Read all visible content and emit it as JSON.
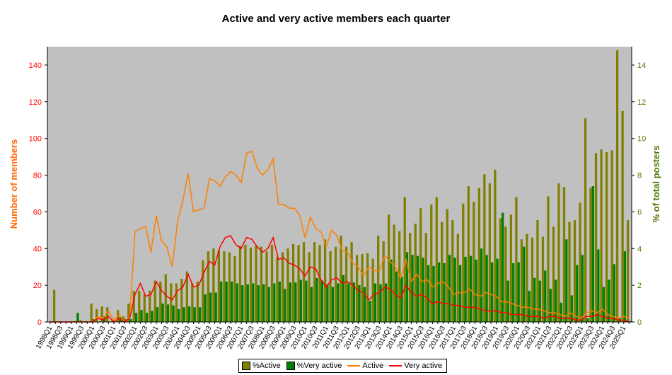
{
  "chart_data": {
    "type": "bar",
    "title": "Active and very active members each quarter",
    "ylabel": "Number of members",
    "y2label": "% of total posters",
    "ylim": [
      0,
      150
    ],
    "y2lim": [
      0,
      15
    ],
    "yticks": [
      "0",
      "20",
      "40",
      "60",
      "80",
      "100",
      "120",
      "140"
    ],
    "y2ticks": [
      "0",
      "2",
      "4",
      "6",
      "8",
      "10",
      "12",
      "14"
    ],
    "x_label_every": 2,
    "categories": [
      "1998Q1",
      "1998Q2",
      "1998Q3",
      "1998Q4",
      "1999Q1",
      "1999Q2",
      "1999Q3",
      "1999Q4",
      "2000Q1",
      "2000Q2",
      "2000Q3",
      "2000Q4",
      "2001Q1",
      "2001Q2",
      "2001Q3",
      "2001Q4",
      "2002Q1",
      "2002Q2",
      "2002Q3",
      "2002Q4",
      "2003Q1",
      "2003Q2",
      "2003Q3",
      "2003Q4",
      "2004Q1",
      "2004Q2",
      "2004Q3",
      "2004Q4",
      "2005Q1",
      "2005Q2",
      "2005Q3",
      "2005Q4",
      "2006Q1",
      "2006Q2",
      "2006Q3",
      "2006Q4",
      "2007Q1",
      "2007Q2",
      "2007Q3",
      "2007Q4",
      "2008Q1",
      "2008Q2",
      "2008Q3",
      "2008Q4",
      "2009Q1",
      "2009Q2",
      "2009Q3",
      "2009Q4",
      "2010Q1",
      "2010Q2",
      "2010Q3",
      "2010Q4",
      "2011Q1",
      "2011Q2",
      "2011Q3",
      "2011Q4",
      "2012Q1",
      "2012Q2",
      "2012Q3",
      "2012Q4",
      "2013Q1",
      "2013Q2",
      "2013Q3",
      "2013Q4",
      "2014Q1",
      "2014Q2",
      "2014Q3",
      "2014Q4",
      "2015Q1",
      "2015Q2",
      "2015Q3",
      "2015Q4",
      "2016Q1",
      "2016Q2",
      "2016Q3",
      "2016Q4",
      "2017Q1",
      "2017Q2",
      "2017Q3",
      "2017Q4",
      "2018Q1",
      "2018Q2",
      "2018Q3",
      "2018Q4",
      "2019Q1",
      "2019Q2",
      "2019Q3",
      "2019Q4",
      "2020Q1",
      "2020Q2",
      "2020Q3",
      "2020Q4",
      "2021Q1",
      "2021Q2",
      "2021Q3",
      "2021Q4",
      "2022Q1",
      "2022Q2",
      "2022Q3",
      "2022Q4",
      "2023Q1",
      "2023Q2",
      "2023Q3",
      "2023Q4",
      "2024Q1",
      "2024Q2",
      "2024Q3",
      "2024Q4",
      "2025Q1",
      "2025Q2"
    ],
    "series": [
      {
        "name": "%Active",
        "type": "bar",
        "axis": "right",
        "color": "#808000",
        "values": [
          0,
          1.75,
          0,
          0,
          0,
          0.05,
          0.1,
          0.05,
          1.0,
          0.7,
          0.85,
          0.8,
          0.1,
          0.65,
          0.3,
          1.0,
          1.7,
          1.7,
          1.5,
          1.7,
          2.25,
          2.2,
          2.6,
          2.1,
          2.1,
          2.35,
          2.75,
          2.1,
          2.2,
          3.35,
          3.85,
          4.0,
          3.9,
          3.85,
          3.8,
          3.6,
          4.15,
          4.2,
          4.05,
          4.15,
          4.1,
          3.85,
          4.2,
          3.55,
          3.8,
          4.0,
          4.25,
          4.2,
          4.35,
          3.8,
          4.35,
          4.2,
          4.5,
          3.85,
          4.1,
          4.7,
          4.1,
          4.35,
          3.65,
          3.7,
          3.75,
          3.45,
          4.7,
          4.4,
          5.85,
          5.3,
          4.95,
          6.8,
          4.85,
          5.35,
          6.2,
          4.85,
          6.4,
          6.8,
          5.45,
          6.15,
          5.55,
          4.8,
          6.45,
          7.4,
          6.55,
          7.3,
          8.05,
          7.55,
          8.3,
          5.65,
          5.2,
          5.85,
          6.8,
          4.5,
          4.8,
          4.6,
          5.55,
          4.65,
          6.85,
          5.2,
          7.55,
          7.35,
          5.45,
          5.55,
          6.5,
          11.1,
          7.3,
          9.2,
          9.4,
          9.25,
          9.35,
          14.8,
          11.5,
          5.55
        ]
      },
      {
        "name": "%Very active",
        "type": "bar",
        "axis": "right",
        "color": "#008000",
        "values": [
          0,
          0,
          0,
          0,
          0,
          0.5,
          0,
          0,
          0.15,
          0,
          0.3,
          0,
          0,
          0.25,
          0.15,
          0.15,
          0.5,
          0.65,
          0.5,
          0.6,
          0.8,
          1.0,
          0.95,
          0.9,
          0.7,
          0.8,
          0.85,
          0.8,
          0.8,
          1.5,
          1.6,
          1.6,
          2.2,
          2.2,
          2.2,
          2.1,
          2.0,
          2.05,
          2.1,
          2.0,
          2.05,
          1.9,
          2.1,
          2.2,
          1.8,
          2.15,
          2.15,
          2.3,
          2.25,
          1.9,
          2.4,
          2.25,
          2.05,
          1.9,
          2.1,
          2.55,
          2.1,
          2.15,
          2.0,
          1.9,
          1.15,
          2.1,
          2.05,
          2.1,
          3.4,
          2.75,
          2.45,
          3.8,
          3.65,
          3.6,
          3.5,
          3.1,
          3.05,
          3.25,
          3.2,
          3.65,
          3.5,
          3.1,
          3.55,
          3.6,
          3.4,
          4.0,
          3.65,
          3.25,
          3.45,
          5.95,
          2.25,
          3.2,
          3.25,
          4.1,
          1.7,
          2.4,
          2.25,
          2.8,
          1.8,
          2.3,
          1.05,
          4.5,
          1.45,
          3.1,
          3.65,
          0.2,
          7.4,
          3.95,
          1.9,
          2.3,
          3.15,
          0.2,
          3.85,
          0.05
        ]
      },
      {
        "name": "Active",
        "type": "line",
        "axis": "left",
        "color": "#ff7f00",
        "values": [
          0,
          0,
          0,
          0,
          0,
          0,
          0,
          0,
          0,
          3,
          2,
          6,
          1,
          4,
          0,
          3,
          49,
          51,
          52,
          38,
          58,
          44,
          41,
          30,
          55,
          66,
          81,
          60,
          61,
          62,
          78,
          77,
          74,
          79,
          82,
          80,
          76,
          92,
          93,
          84,
          80,
          83,
          89,
          64,
          64,
          62,
          62,
          58,
          46,
          57,
          51,
          49,
          41,
          50,
          47,
          39,
          38,
          32,
          30,
          25,
          30,
          28,
          28,
          36,
          33,
          30,
          24,
          34,
          22,
          26,
          22,
          23,
          19,
          21,
          22,
          19,
          15,
          16,
          16,
          18,
          15,
          14,
          16,
          15,
          14,
          11,
          11,
          10,
          9,
          8,
          8,
          7,
          7,
          6,
          5,
          5,
          4,
          3,
          5,
          3,
          2,
          5,
          6,
          5,
          7,
          4,
          3,
          2,
          3,
          2
        ]
      },
      {
        "name": "Very active",
        "type": "line",
        "axis": "left",
        "color": "#ff0000",
        "values": [
          0,
          0,
          0,
          0,
          0,
          0,
          0,
          0,
          0,
          2,
          1,
          3,
          0,
          2,
          0,
          2,
          15,
          21,
          14,
          15,
          22,
          17,
          14,
          12,
          17,
          19,
          26,
          19,
          20,
          27,
          33,
          31,
          41,
          46,
          47,
          42,
          40,
          46,
          45,
          41,
          38,
          40,
          46,
          34,
          35,
          32,
          31,
          29,
          25,
          30,
          29,
          23,
          19,
          23,
          24,
          21,
          22,
          20,
          17,
          16,
          12,
          15,
          16,
          19,
          18,
          15,
          13,
          20,
          16,
          14,
          15,
          13,
          10,
          11,
          10,
          10,
          9,
          9,
          8,
          8,
          8,
          7,
          6,
          6,
          6,
          5,
          5,
          4,
          4,
          4,
          3,
          3,
          3,
          2,
          3,
          3,
          2,
          2,
          2,
          1,
          1,
          3,
          3,
          4,
          3,
          2,
          2,
          1,
          1,
          0
        ]
      }
    ],
    "grid": false,
    "legend_position": "bottom",
    "plot_background": "#c0c0c0"
  }
}
